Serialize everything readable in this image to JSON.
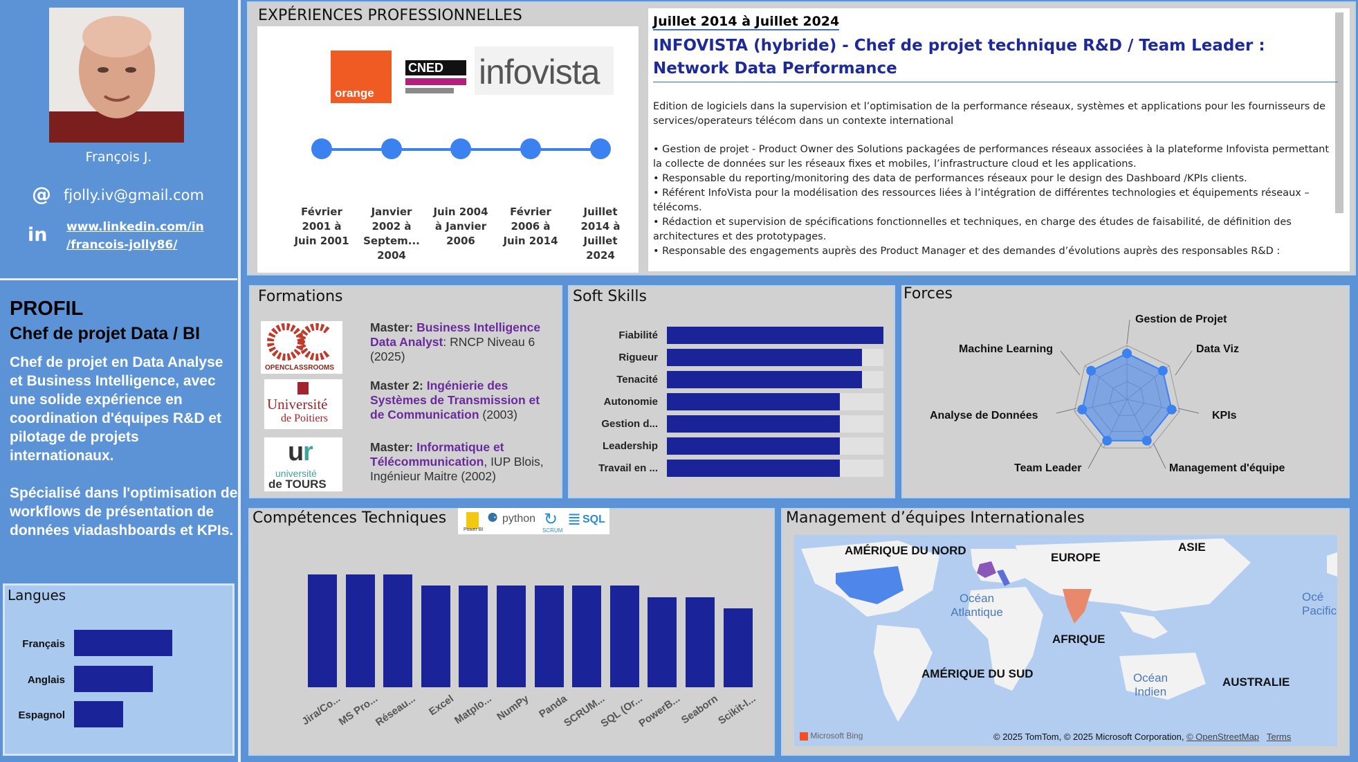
{
  "profile": {
    "name": "François J.",
    "email": "fjolly.iv@gmail.com",
    "linkedin_line1": "www.linkedin.com/in",
    "linkedin_line2": "/francois-jolly86/",
    "profil_label": "PROFIL",
    "role": "Chef de projet Data / BI",
    "summary_1": "Chef de projet en Data Analyse et Business Intelligence, avec une solide expérience en coordination d'équipes R&D et pilotage de projets internationaux.",
    "summary_2": "Spécialisé dans l'optimisation de workflows de présentation de données viadashboards et KPIs."
  },
  "langues": {
    "title": "Langues",
    "items": [
      {
        "label": "Français",
        "level": 1.0
      },
      {
        "label": "Anglais",
        "level": 0.8
      },
      {
        "label": "Espagnol",
        "level": 0.5
      }
    ]
  },
  "experiences": {
    "title": "EXPÉRIENCES PROFESSIONNELLES",
    "logos": {
      "orange": "orange",
      "cned": "CNED",
      "infovista": "infovista"
    },
    "periods": [
      "Février 2001 à Juin 2001",
      "Janvier 2002 à Septem... 2004",
      "Juin 2004 à Janvier 2006",
      "Février 2006 à Juin 2014",
      "Juillet 2014 à Juillet 2024"
    ],
    "detail": {
      "period": "Juillet 2014 à Juillet 2024",
      "company": "INFOVISTA (hybride) -  Chef de projet technique R&D / Team Leader : Network Data Performance",
      "description": "Edition de logiciels dans la supervision et l’optimisation de la performance réseaux, systèmes et applications pour les fournisseurs de services/operateurs télécom dans un contexte international",
      "bullets": [
        "•  Gestion de projet - Product Owner des Solutions packagées de performances réseaux associées à  la plateforme Infovista permettant la collecte de données sur les réseaux fixes et mobiles, l’infrastructure cloud et les applications.",
        "•  Responsable du reporting/monitoring des data de performances réseaux pour le design des Dashboard /KPIs clients.",
        "•  Référent InfoVista pour la modélisation des ressources liées à l’intégration de différentes technologies et équipements réseaux – télécoms.",
        "•  Rédaction et supervision de spécifications fonctionnelles et techniques, en charge des études de faisabilité, de définition des architectures et des prototypages.",
        "•  Responsable des engagements auprès des Product Manager et des demandes d’évolutions auprès des responsables R&D : participation aux choix des fonctionnalités, définition des besoins techniques, challenging des fonctionnalités produits, proposition de"
      ]
    }
  },
  "formations": {
    "title": "Formations",
    "items": [
      {
        "prefix": "Master: ",
        "highlight": "Business Intelligence Data Analyst",
        "suffix": ": RNCP Niveau 6 (2025)",
        "logo": "OPENCLASSROOMS"
      },
      {
        "prefix": "Master 2: ",
        "highlight": "Ingénierie des Systèmes  de Transmission et de Communication",
        "suffix": " (2003)",
        "logo_1": "Université",
        "logo_2": "de Poitiers"
      },
      {
        "prefix": "Master: ",
        "highlight": "Informatique et Télécommunication",
        "suffix": ", IUP Blois, Ingénieur Maitre (2002)",
        "logo_1": "université",
        "logo_2": "de TOURS"
      }
    ]
  },
  "soft_skills": {
    "title": "Soft Skills",
    "items": [
      {
        "label": "Fiabilité",
        "level": 1.0
      },
      {
        "label": "Rigueur",
        "level": 0.9
      },
      {
        "label": "Tenacité",
        "level": 0.9
      },
      {
        "label": "Autonomie",
        "level": 0.8
      },
      {
        "label": "Gestion d...",
        "level": 0.8
      },
      {
        "label": "Leadership",
        "level": 0.8
      },
      {
        "label": "Travail en ...",
        "level": 0.8
      }
    ]
  },
  "forces": {
    "title": "Forces",
    "axes": [
      "Gestion de Projet",
      "Data Viz",
      "KPIs",
      "Management d'équipe",
      "Team Leader",
      "Analyse de Données",
      "Machine Learning"
    ],
    "values": [
      0.85,
      0.85,
      0.85,
      0.85,
      0.85,
      0.85,
      0.85
    ]
  },
  "competences": {
    "title": "Compétences Techniques",
    "icons": [
      "Power BI",
      "python",
      "SCRUM",
      "SQL"
    ]
  },
  "chart_data": {
    "type": "bar",
    "categories": [
      "Jira/Co...",
      "MS Pro...",
      "Réseau...",
      "Excel",
      "Matplo...",
      "NumPy",
      "Panda",
      "SCRUM...",
      "SQL (Or...",
      "PowerB...",
      "Seaborn",
      "Scikit-l..."
    ],
    "values": [
      10,
      10,
      10,
      9,
      9,
      9,
      9,
      9,
      9,
      8,
      8,
      7
    ],
    "ylim": [
      0,
      12
    ]
  },
  "management": {
    "title": "Management d’équipes Internationales",
    "continents": [
      "AMÉRIQUE DU NORD",
      "EUROPE",
      "ASIE",
      "AFRIQUE",
      "AMÉRIQUE DU SUD",
      "AUSTRALIE"
    ],
    "oceans": [
      "Océan Atlantique",
      "Océan Indien",
      "Océ Pacific"
    ],
    "attribution": "© 2025 TomTom, © 2025 Microsoft Corporation,",
    "osm_link": "© OpenStreetMap",
    "terms_link": "Terms",
    "bing": "Microsoft Bing",
    "colors": {
      "usa": "#4f86ea",
      "france": "#8a56b8",
      "italy": "#5c6fd8",
      "india": "#e8896b"
    }
  }
}
